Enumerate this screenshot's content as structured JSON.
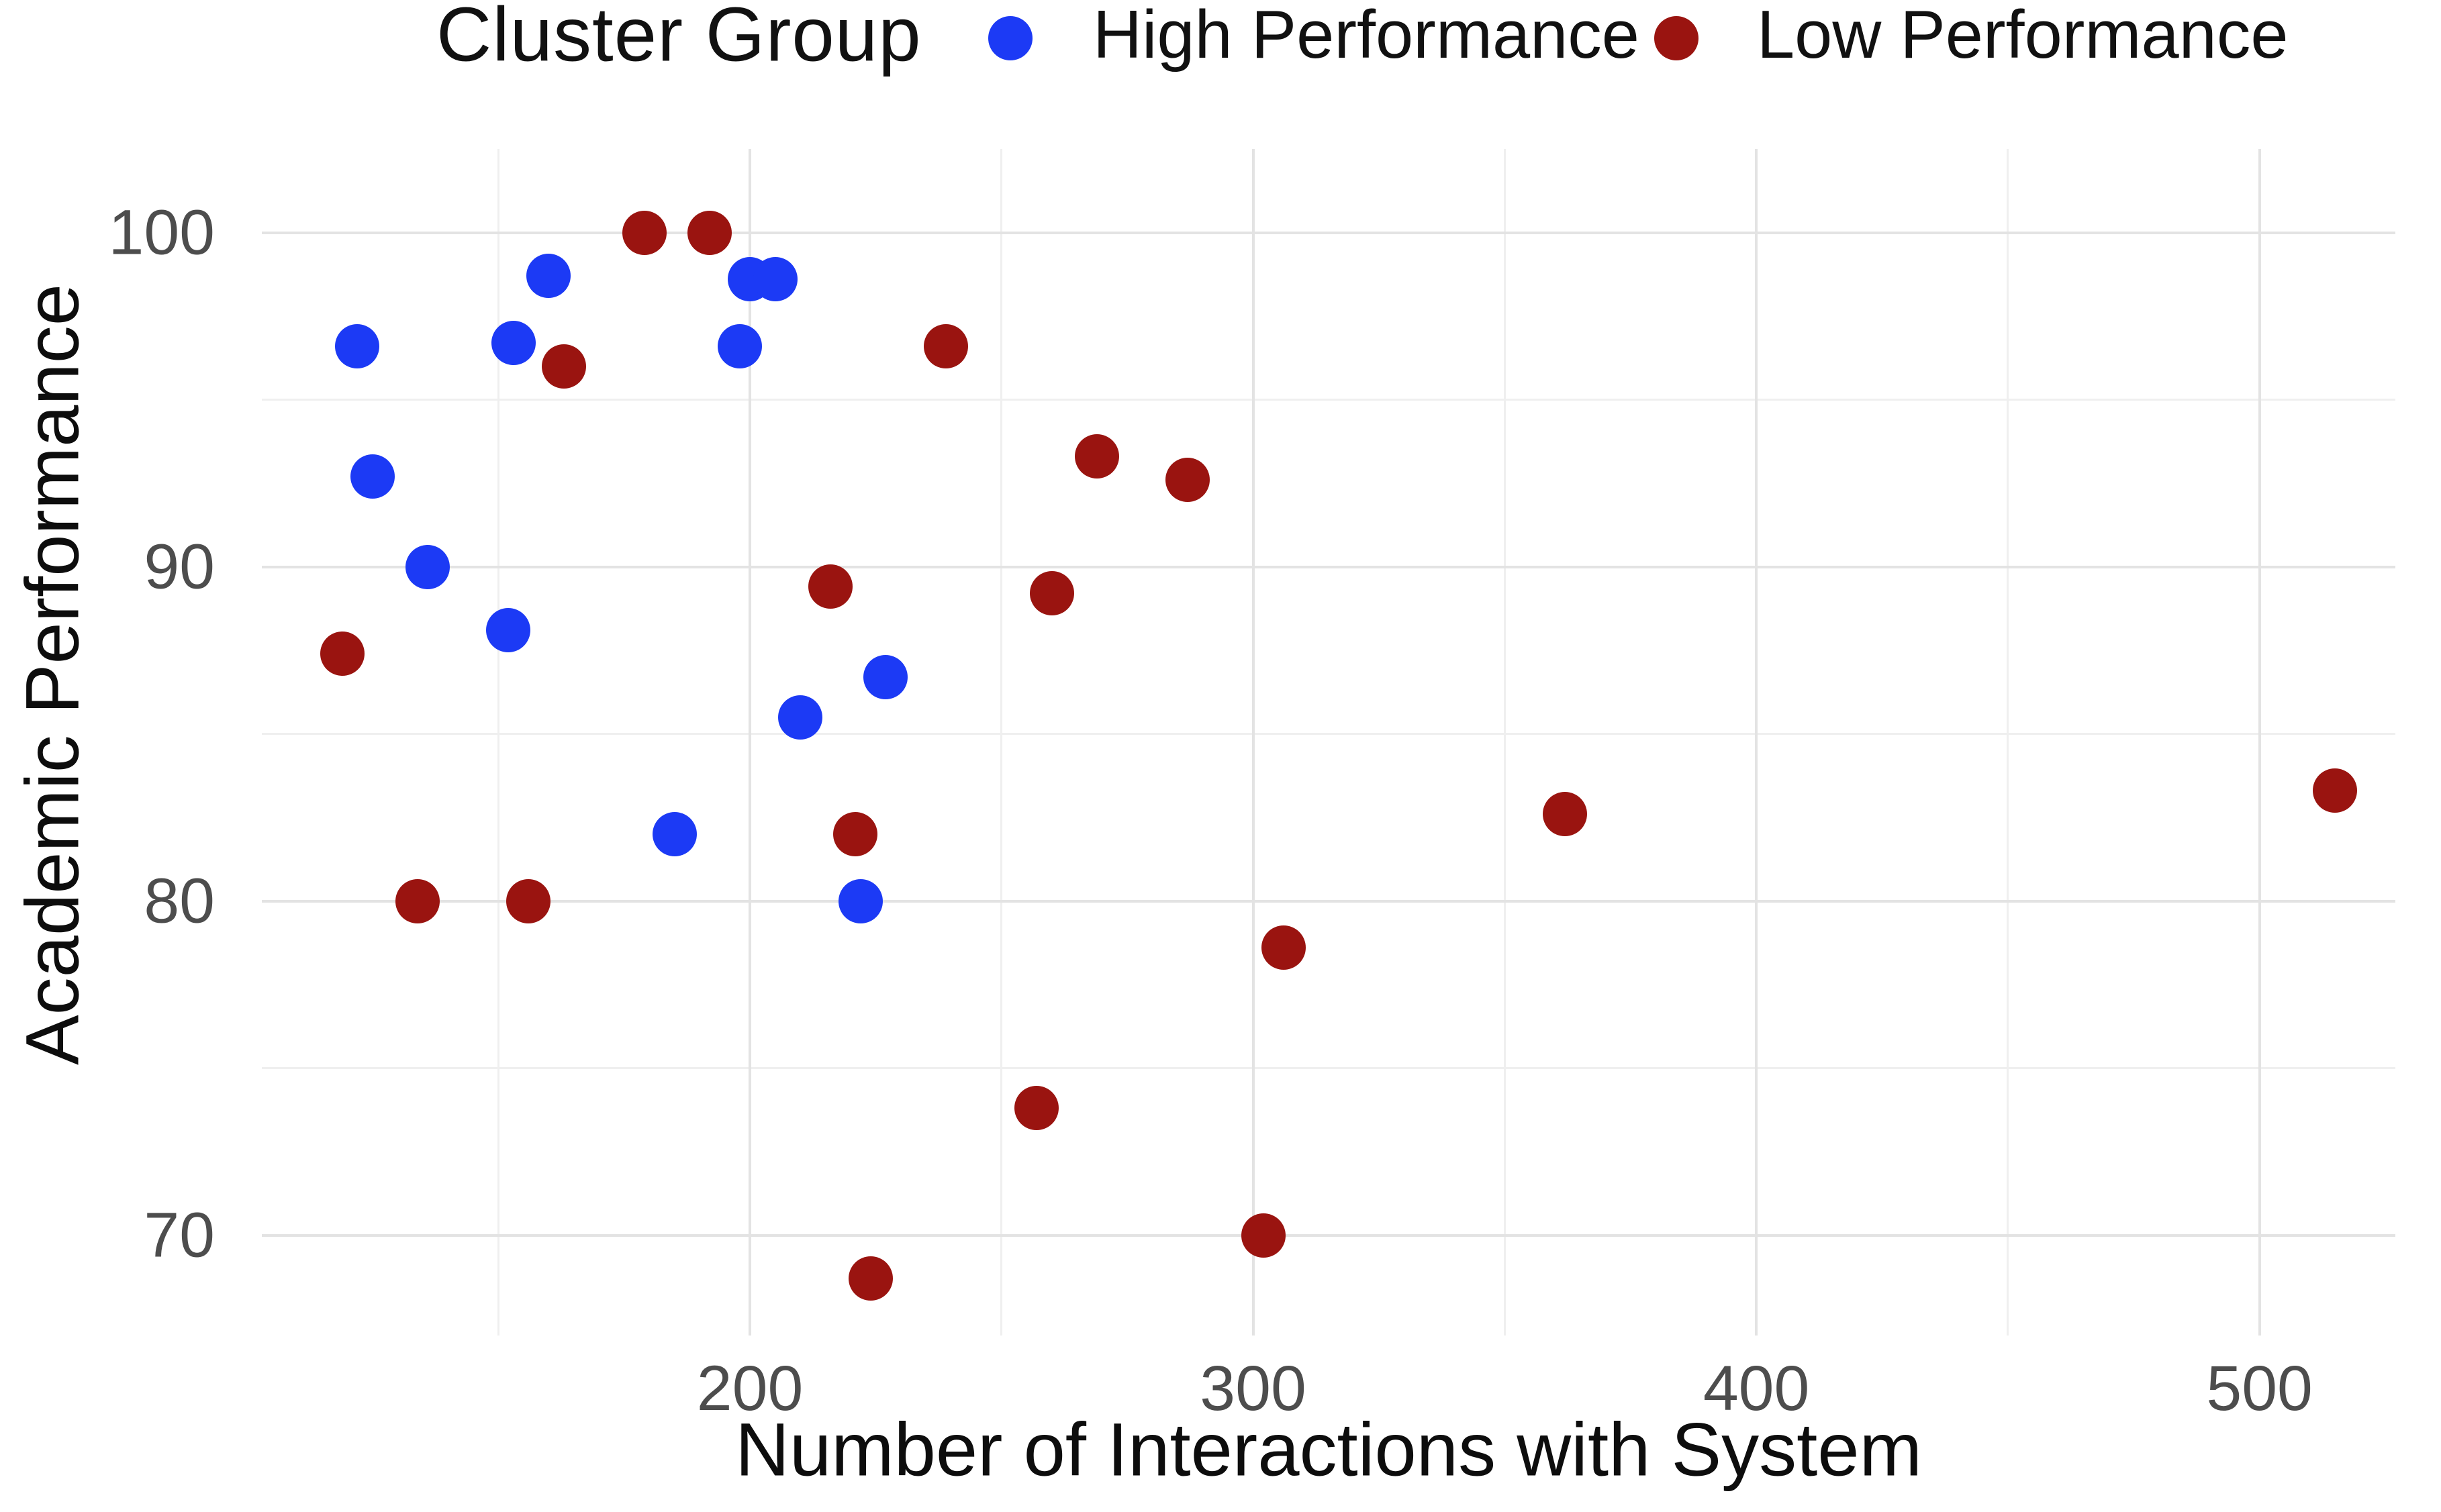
{
  "figure": {
    "legend": {
      "title": "Cluster Group",
      "items": [
        {
          "label": "High Performance",
          "color_key": "high"
        },
        {
          "label": "Low Performance",
          "color_key": "low"
        }
      ]
    },
    "axes": {
      "x_title": "Number of Interactions with System",
      "y_title": "Academic Performance"
    }
  },
  "colors": {
    "high": "#1c3af5",
    "low": "#9a1410",
    "tick_text": "#4d4d4d",
    "axis_text": "#0d0d0d",
    "grid_major": "#e3e3e3",
    "grid_minor": "#efefef",
    "background": "#ffffff"
  },
  "chart_data": {
    "type": "scatter",
    "title": "",
    "xlabel": "Number of Interactions with System",
    "ylabel": "Academic Performance",
    "legend_title": "Cluster Group",
    "legend_position": "top",
    "grid": true,
    "xlim": [
      103,
      527
    ],
    "ylim": [
      67,
      102.5
    ],
    "x_ticks_major": [
      200,
      300,
      400,
      500
    ],
    "x_ticks_minor": [
      150,
      250,
      350,
      450
    ],
    "y_ticks_major": [
      70,
      80,
      90,
      100
    ],
    "y_ticks_minor": [
      75,
      85,
      95
    ],
    "series": [
      {
        "name": "High Performance",
        "color_key": "high",
        "points": [
          [
            122,
            96.6
          ],
          [
            125,
            92.7
          ],
          [
            136,
            90.0
          ],
          [
            152,
            88.1
          ],
          [
            153,
            96.7
          ],
          [
            160,
            98.7
          ],
          [
            185,
            82.0
          ],
          [
            198,
            96.6
          ],
          [
            200,
            98.6
          ],
          [
            205,
            98.6
          ],
          [
            210,
            85.5
          ],
          [
            222,
            80.0
          ],
          [
            227,
            86.7
          ]
        ]
      },
      {
        "name": "Low Performance",
        "color_key": "low",
        "points": [
          [
            119,
            87.4
          ],
          [
            134,
            80.0
          ],
          [
            156,
            80.0
          ],
          [
            163,
            96.0
          ],
          [
            179,
            100.0
          ],
          [
            192,
            100.0
          ],
          [
            216,
            89.4
          ],
          [
            221,
            82.0
          ],
          [
            224,
            68.7
          ],
          [
            239,
            96.6
          ],
          [
            257,
            73.8
          ],
          [
            260,
            89.2
          ],
          [
            269,
            93.3
          ],
          [
            287,
            92.6
          ],
          [
            302,
            70.0
          ],
          [
            306,
            78.6
          ],
          [
            362,
            82.6
          ],
          [
            515,
            83.3
          ]
        ]
      }
    ]
  }
}
